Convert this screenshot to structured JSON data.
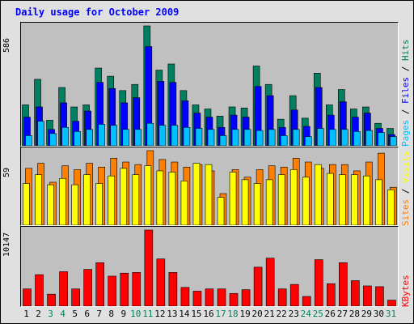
{
  "title": "Daily usage for October 2009",
  "labels": {
    "hits_panel": [
      {
        "text": "Pages",
        "color": "#00c0ff"
      },
      {
        "text": " / ",
        "color": "#000000"
      },
      {
        "text": "Files",
        "color": "#0000ff"
      },
      {
        "text": " / ",
        "color": "#000000"
      },
      {
        "text": "Hits",
        "color": "#008060"
      }
    ],
    "sites_panel": [
      {
        "text": "Sites",
        "color": "#ff8000"
      },
      {
        "text": " / ",
        "color": "#000000"
      },
      {
        "text": "Visits",
        "color": "#ffff00"
      }
    ],
    "kb_panel": [
      {
        "text": "KBytes",
        "color": "#ff0000"
      }
    ]
  },
  "colors": {
    "hits": "#008060",
    "files": "#0000ff",
    "pages": "#00c0ff",
    "sites": "#ff8000",
    "visits": "#ffff00",
    "kbytes": "#ff0000",
    "weekend_label": "#00805c"
  },
  "chart_data": [
    {
      "type": "bar",
      "title": "",
      "y_max_label": "586",
      "ylim": [
        0,
        586
      ],
      "categories": [
        "1",
        "2",
        "3",
        "4",
        "5",
        "6",
        "7",
        "8",
        "9",
        "10",
        "11",
        "12",
        "13",
        "14",
        "15",
        "16",
        "17",
        "18",
        "19",
        "20",
        "21",
        "22",
        "23",
        "24",
        "25",
        "26",
        "27",
        "28",
        "29",
        "30",
        "31"
      ],
      "weekend_days": [
        "3",
        "4",
        "10",
        "11",
        "17",
        "18",
        "24",
        "25",
        "31"
      ],
      "series": [
        {
          "name": "Hits",
          "values": [
            200,
            325,
            125,
            285,
            190,
            200,
            380,
            340,
            270,
            300,
            586,
            370,
            400,
            270,
            200,
            180,
            145,
            190,
            185,
            390,
            300,
            130,
            245,
            135,
            355,
            200,
            275,
            180,
            190,
            110,
            85
          ]
        },
        {
          "name": "Files",
          "values": [
            140,
            190,
            80,
            210,
            120,
            170,
            310,
            280,
            210,
            235,
            485,
            315,
            310,
            220,
            160,
            140,
            90,
            150,
            140,
            290,
            245,
            90,
            175,
            95,
            285,
            150,
            215,
            140,
            160,
            85,
            55
          ]
        },
        {
          "name": "Pages",
          "values": [
            50,
            120,
            60,
            90,
            70,
            80,
            105,
            100,
            80,
            80,
            110,
            100,
            100,
            90,
            85,
            80,
            50,
            80,
            80,
            75,
            80,
            50,
            80,
            45,
            85,
            80,
            80,
            70,
            75,
            65,
            45
          ]
        }
      ]
    },
    {
      "type": "bar",
      "title": "",
      "y_max_label": "59",
      "ylim": [
        0,
        59
      ],
      "categories": [
        "1",
        "2",
        "3",
        "4",
        "5",
        "6",
        "7",
        "8",
        "9",
        "10",
        "11",
        "12",
        "13",
        "14",
        "15",
        "16",
        "17",
        "18",
        "19",
        "20",
        "21",
        "22",
        "23",
        "24",
        "25",
        "26",
        "27",
        "28",
        "29",
        "30",
        "31"
      ],
      "series": [
        {
          "name": "Sites",
          "values": [
            45,
            49,
            34,
            47,
            44,
            49,
            46,
            53,
            50,
            48,
            59,
            52,
            50,
            46,
            48,
            43,
            25,
            44,
            38,
            44,
            47,
            46,
            53,
            50,
            45,
            48,
            48,
            43,
            50,
            57,
            30
          ]
        },
        {
          "name": "Visits",
          "values": [
            33,
            40,
            32,
            37,
            32,
            40,
            33,
            39,
            45,
            40,
            47,
            43,
            42,
            35,
            49,
            48,
            22,
            42,
            36,
            33,
            36,
            40,
            44,
            38,
            48,
            41,
            40,
            40,
            39,
            36,
            28
          ]
        }
      ]
    },
    {
      "type": "bar",
      "title": "",
      "y_max_label": "10147",
      "ylim": [
        0,
        10147
      ],
      "categories": [
        "1",
        "2",
        "3",
        "4",
        "5",
        "6",
        "7",
        "8",
        "9",
        "10",
        "11",
        "12",
        "13",
        "14",
        "15",
        "16",
        "17",
        "18",
        "19",
        "20",
        "21",
        "22",
        "23",
        "24",
        "25",
        "26",
        "27",
        "28",
        "29",
        "30",
        "31"
      ],
      "series": [
        {
          "name": "KBytes",
          "values": [
            2300,
            4200,
            1600,
            4600,
            2300,
            4900,
            5800,
            4000,
            4400,
            4500,
            10147,
            6300,
            4500,
            2500,
            2000,
            2300,
            2300,
            1700,
            2200,
            5200,
            6400,
            2300,
            2900,
            1300,
            6200,
            3000,
            5800,
            3400,
            2700,
            2600,
            800
          ]
        }
      ]
    }
  ]
}
